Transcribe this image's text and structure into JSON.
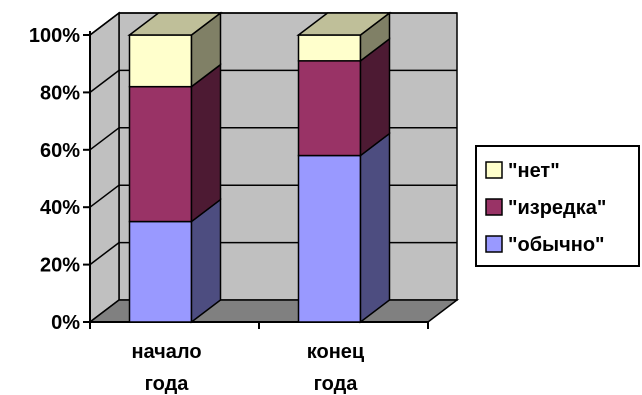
{
  "chart_data": {
    "type": "bar",
    "stacked": true,
    "three_d": true,
    "categories": [
      [
        "начало",
        "года"
      ],
      [
        "конец",
        "года"
      ]
    ],
    "series": [
      {
        "name": "\"обычно\"",
        "values": [
          35,
          58
        ],
        "color": "#9999ff"
      },
      {
        "name": "\"изредка\"",
        "values": [
          47,
          33
        ],
        "color": "#993366"
      },
      {
        "name": "\"нет\"",
        "values": [
          18,
          9
        ],
        "color": "#ffffcc"
      }
    ],
    "ylim": [
      0,
      100
    ],
    "yticks": [
      "0%",
      "20%",
      "40%",
      "60%",
      "80%",
      "100%"
    ],
    "grid": true,
    "wall_color": "#c0c0c0",
    "floor_color": "#808080",
    "legend_position": "right"
  }
}
